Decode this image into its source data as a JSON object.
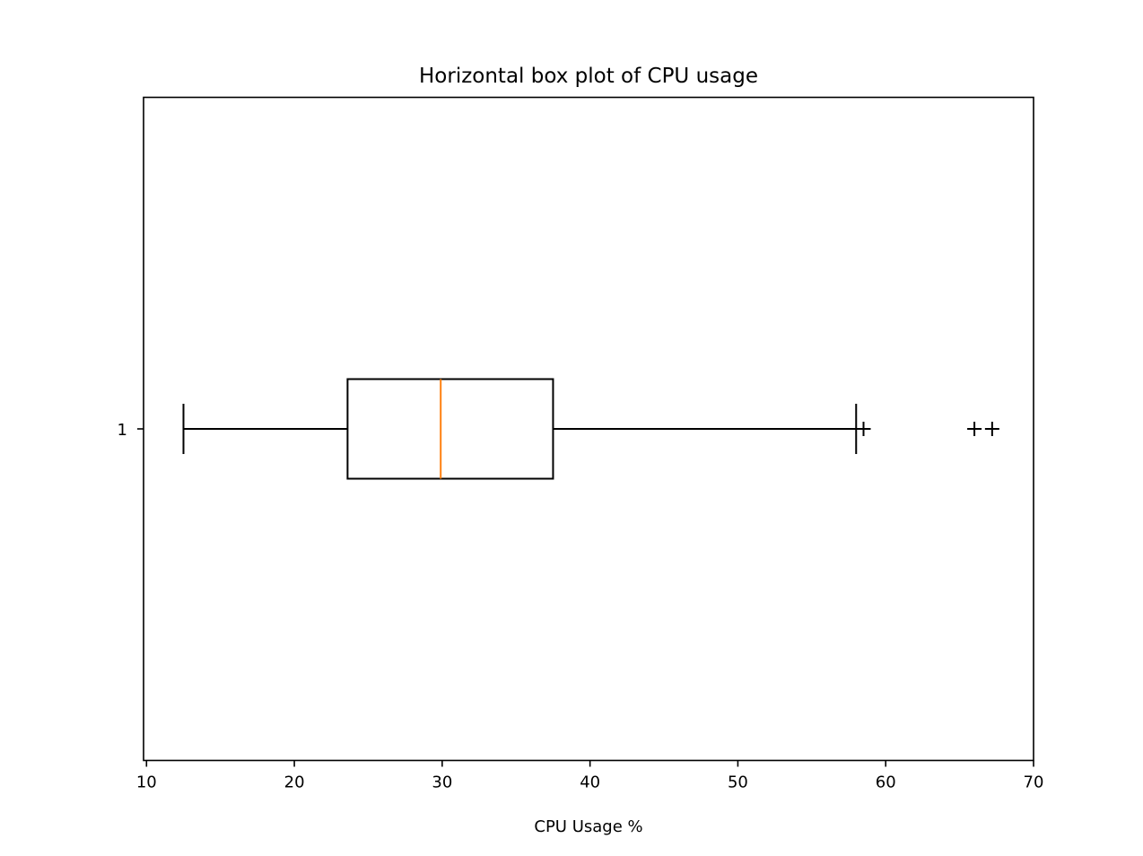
{
  "chart_data": {
    "type": "boxplot",
    "orientation": "horizontal",
    "title": "Horizontal box plot of CPU usage",
    "xlabel": "CPU Usage %",
    "ylabel": "",
    "xlim": [
      9.8,
      70.0
    ],
    "x_ticks": [
      10,
      20,
      30,
      40,
      50,
      60,
      70
    ],
    "y_tick_labels": [
      "1"
    ],
    "grid": false,
    "boxes": [
      {
        "label": "1",
        "whisker_low": 12.5,
        "q1": 23.6,
        "median": 29.9,
        "q3": 37.5,
        "whisker_high": 58.0,
        "outliers": [
          58.5,
          66.0,
          67.2
        ]
      }
    ],
    "colors": {
      "box": "#000000",
      "median": "#ff7f0e",
      "whisker": "#000000",
      "flier": "#000000"
    }
  }
}
